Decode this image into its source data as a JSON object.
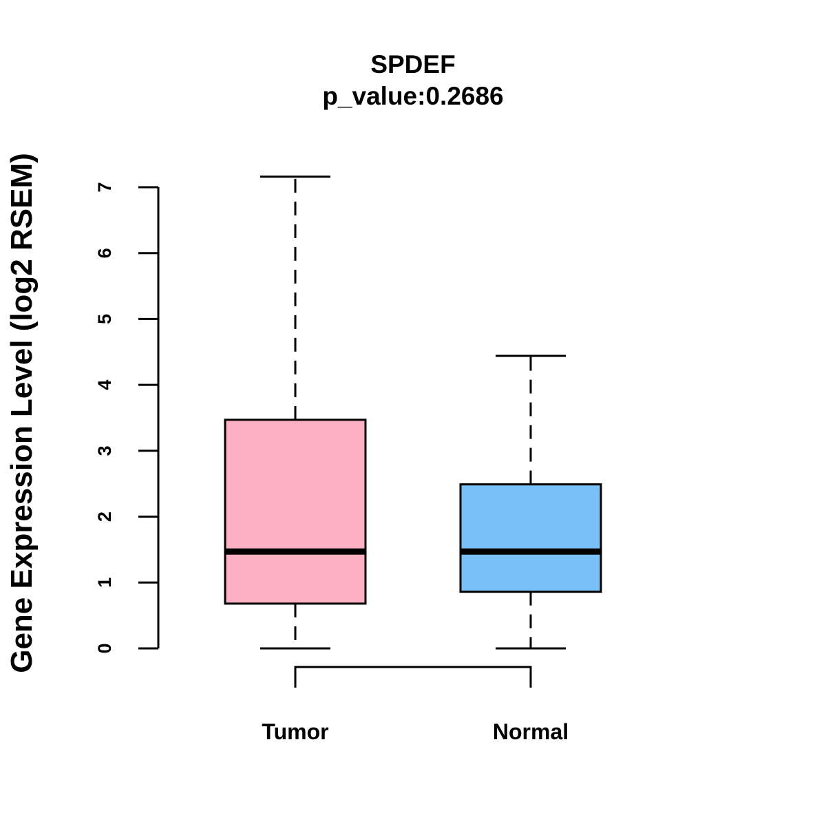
{
  "chart_data": {
    "type": "box",
    "title": "SPDEF",
    "subtitle": "p_value:0.2686",
    "ylabel": "Gene Expression Level (log2 RSEM)",
    "xlabel": "",
    "ylim": [
      0,
      7
    ],
    "yticks": [
      0,
      1,
      2,
      3,
      4,
      5,
      6,
      7
    ],
    "grid": false,
    "categories": [
      "Tumor",
      "Normal"
    ],
    "series": [
      {
        "category": "Tumor",
        "min": 0,
        "q1": 0.68,
        "median": 1.47,
        "q3": 3.47,
        "max": 7.16,
        "color": "#FCB0C2"
      },
      {
        "category": "Normal",
        "min": 0,
        "q1": 0.86,
        "median": 1.47,
        "q3": 2.49,
        "max": 4.44,
        "color": "#79C0F8"
      }
    ],
    "comparison_bracket": [
      "Tumor",
      "Normal"
    ]
  }
}
